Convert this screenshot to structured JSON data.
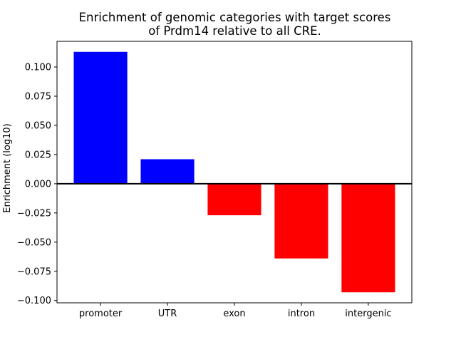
{
  "figure": {
    "title_line1": "Enrichment of genomic categories with target scores",
    "title_line2": "of Prdm14 relative to all CRE."
  },
  "chart_data": {
    "type": "bar",
    "title": "Enrichment of genomic categories with target scores\nof Prdm14 relative to all CRE.",
    "categories": [
      "promoter",
      "UTR",
      "exon",
      "intron",
      "intergenic"
    ],
    "values": [
      0.113,
      0.021,
      -0.027,
      -0.064,
      -0.093
    ],
    "xlabel": "",
    "ylabel": "Enrichment (log10)",
    "ylim": [
      -0.102,
      0.122
    ],
    "yticks": [
      0.1,
      0.075,
      0.05,
      0.025,
      0.0,
      -0.025,
      -0.05,
      -0.075,
      -0.1
    ],
    "ytick_label_format": "3_decimals",
    "grid": false,
    "legend_position": "none",
    "bar_width_fraction": 0.8,
    "colors": {
      "positive_bar": "#0000ff",
      "negative_bar": "#ff0000",
      "zero_line": "#000000",
      "axes_edge": "#000000",
      "background": "#ffffff"
    }
  }
}
